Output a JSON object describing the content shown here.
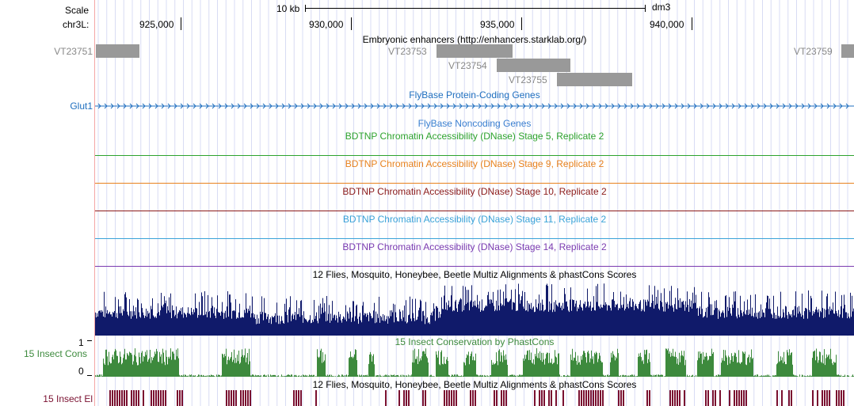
{
  "ruler": {
    "scale_label": "Scale",
    "scale_bar_label": "10 kb",
    "assembly": "dm3",
    "chrom_label": "chr3L:",
    "positions": [
      "925,000",
      "930,000",
      "935,000",
      "940,000"
    ]
  },
  "tracks": {
    "enhancers": {
      "title": "Embryonic enhancers (http://enhancers.starklab.org/)",
      "items": [
        {
          "label": "VT23751"
        },
        {
          "label": "VT23753"
        },
        {
          "label": "VT23754"
        },
        {
          "label": "VT23755"
        },
        {
          "label": "VT23759"
        }
      ],
      "color": "#999999"
    },
    "protein_coding": {
      "title": "FlyBase Protein-Coding Genes",
      "gene_label": "Glut1",
      "color": "#1f6fbf"
    },
    "noncoding": {
      "title": "FlyBase Noncoding Genes",
      "color": "#3a7fd0"
    },
    "dnase_s5": {
      "title": "BDTNP Chromatin Accessibility (DNase) Stage 5, Replicate 2",
      "color": "#2ea32e"
    },
    "dnase_s9": {
      "title": "BDTNP Chromatin Accessibility (DNase) Stage 9, Replicate 2",
      "color": "#e8821e"
    },
    "dnase_s10": {
      "title": "BDTNP Chromatin Accessibility (DNase) Stage 10, Replicate 2",
      "color": "#8b1a1a"
    },
    "dnase_s11": {
      "title": "BDTNP Chromatin Accessibility (DNase) Stage 11, Replicate 2",
      "color": "#3aa3d8"
    },
    "dnase_s14": {
      "title": "BDTNP Chromatin Accessibility (DNase) Stage 14, Replicate 2",
      "color": "#7a3ab0"
    },
    "multiz": {
      "title": "12 Flies, Mosquito, Honeybee, Beetle Multiz Alignments & phastCons Scores",
      "color": "#101a6a"
    },
    "insect_cons": {
      "title": "15 Insect Conservation by PhastCons",
      "left_label": "15 Insect Cons",
      "y_max": "1",
      "y_min": "0",
      "color": "#3d8a3d"
    },
    "insect_el": {
      "title": "12 Flies, Mosquito, Honeybee, Beetle Multiz Alignments & phastCons Scores",
      "left_label": "15 Insect El",
      "color": "#7a1030"
    }
  }
}
